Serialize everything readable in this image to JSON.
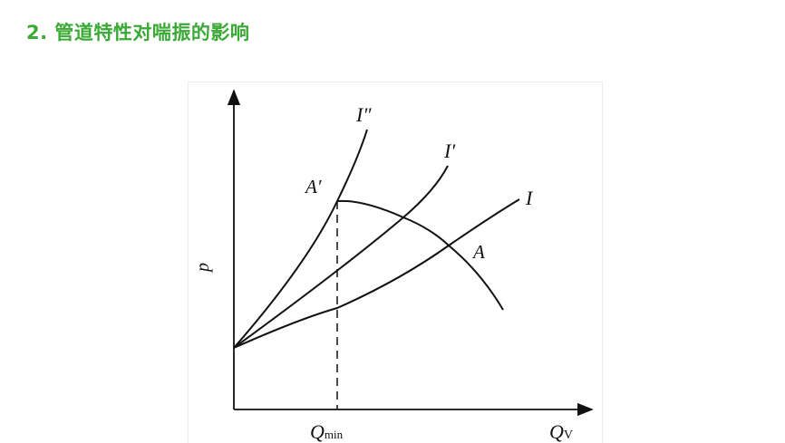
{
  "title": "2. 管道特性对喘振的影响",
  "diagram": {
    "y_axis_label": "p",
    "x_axis_label": "Q",
    "x_axis_label_sub": "V",
    "x_mark_label": "Q",
    "x_mark_label_sub": "min",
    "curves": [
      {
        "label": "I″"
      },
      {
        "label": "I′"
      },
      {
        "label": "I"
      }
    ],
    "points": [
      {
        "label": "A′"
      },
      {
        "label": "A"
      }
    ],
    "line_color": "#111111",
    "title_color": "#3aa935"
  }
}
